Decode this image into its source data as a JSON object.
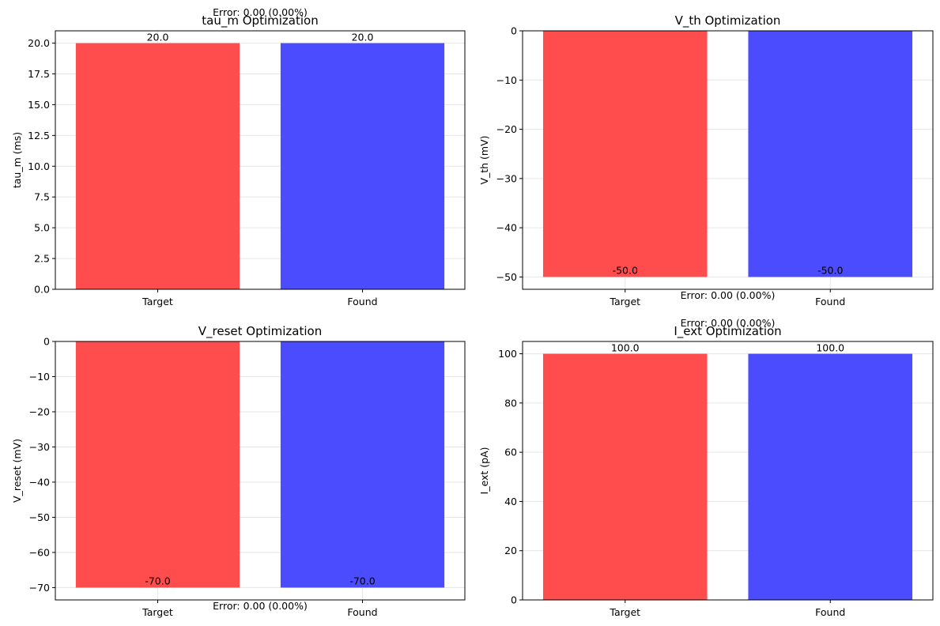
{
  "colors": {
    "target": "#ff4c4c",
    "found": "#4c4cff",
    "grid": "#e6e6e6",
    "axis": "#000000"
  },
  "chart_data": [
    {
      "type": "bar",
      "title": "tau_m Optimization",
      "ylabel": "tau_m (ms)",
      "categories": [
        "Target",
        "Found"
      ],
      "values": [
        20.0,
        20.0
      ],
      "value_labels": [
        "20.0",
        "20.0"
      ],
      "ylim": [
        0,
        21
      ],
      "yticks": [
        0.0,
        2.5,
        5.0,
        7.5,
        10.0,
        12.5,
        15.0,
        17.5,
        20.0
      ],
      "ytick_labels": [
        "0.0",
        "2.5",
        "5.0",
        "7.5",
        "10.0",
        "12.5",
        "15.0",
        "17.5",
        "20.0"
      ],
      "grid": true,
      "annotation": "Error: 0.00 (0.00%)"
    },
    {
      "type": "bar",
      "title": "V_th Optimization",
      "ylabel": "V_th (mV)",
      "categories": [
        "Target",
        "Found"
      ],
      "values": [
        -50.0,
        -50.0
      ],
      "value_labels": [
        "-50.0",
        "-50.0"
      ],
      "ylim": [
        -52.5,
        0
      ],
      "yticks": [
        0,
        -10,
        -20,
        -30,
        -40,
        -50
      ],
      "ytick_labels": [
        "0",
        "−10",
        "−20",
        "−30",
        "−40",
        "−50"
      ],
      "grid": true,
      "annotation": "Error: 0.00 (0.00%)"
    },
    {
      "type": "bar",
      "title": "V_reset Optimization",
      "ylabel": "V_reset (mV)",
      "categories": [
        "Target",
        "Found"
      ],
      "values": [
        -70.0,
        -70.0
      ],
      "value_labels": [
        "-70.0",
        "-70.0"
      ],
      "ylim": [
        -73.5,
        0
      ],
      "yticks": [
        0,
        -10,
        -20,
        -30,
        -40,
        -50,
        -60,
        -70
      ],
      "ytick_labels": [
        "0",
        "−10",
        "−20",
        "−30",
        "−40",
        "−50",
        "−60",
        "−70"
      ],
      "grid": true,
      "annotation": "Error: 0.00 (0.00%)"
    },
    {
      "type": "bar",
      "title": "I_ext Optimization",
      "ylabel": "I_ext (pA)",
      "categories": [
        "Target",
        "Found"
      ],
      "values": [
        100.0,
        100.0
      ],
      "value_labels": [
        "100.0",
        "100.0"
      ],
      "ylim": [
        0,
        105
      ],
      "yticks": [
        0,
        20,
        40,
        60,
        80,
        100
      ],
      "ytick_labels": [
        "0",
        "20",
        "40",
        "60",
        "80",
        "100"
      ],
      "grid": true,
      "annotation": "Error: 0.00 (0.00%)"
    }
  ]
}
